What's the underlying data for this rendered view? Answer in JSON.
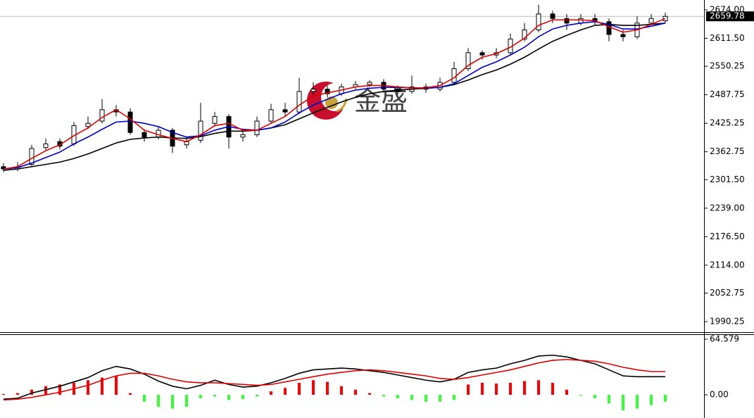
{
  "chart_data": [
    {
      "type": "candlestick",
      "watermark": "金盛",
      "ylim": [
        1967.1,
        2695.6
      ],
      "yticks": [
        {
          "value": 2674,
          "label": "2674.00"
        },
        {
          "value": 2611.5,
          "label": "2611.50"
        },
        {
          "value": 2550.25,
          "label": "2550.25"
        },
        {
          "value": 2487.75,
          "label": "2487.75"
        },
        {
          "value": 2425.25,
          "label": "2425.25"
        },
        {
          "value": 2362.75,
          "label": "2362.75"
        },
        {
          "value": 2301.5,
          "label": "2301.50"
        },
        {
          "value": 2239,
          "label": "2239.00"
        },
        {
          "value": 2176.5,
          "label": "2176.50"
        },
        {
          "value": 2114,
          "label": "2114.00"
        },
        {
          "value": 2052.75,
          "label": "2052.75"
        },
        {
          "value": 1990.25,
          "label": "1990.25"
        }
      ],
      "current_price": 2659.78,
      "up_color": "#ffffff",
      "down_color": "#000000",
      "open": [
        2330,
        2325,
        2335,
        2372,
        2385,
        2380,
        2418,
        2430,
        2455,
        2450,
        2405,
        2395,
        2410,
        2378,
        2388,
        2425,
        2440,
        2395,
        2400,
        2430,
        2455,
        2450,
        2495,
        2500,
        2490,
        2505,
        2510,
        2515,
        2500,
        2495,
        2505,
        2500,
        2515,
        2545,
        2580,
        2575,
        2580,
        2610,
        2630,
        2665,
        2655,
        2645,
        2655,
        2648,
        2620,
        2615,
        2645,
        2650
      ],
      "high": [
        2338,
        2340,
        2378,
        2392,
        2392,
        2428,
        2440,
        2478,
        2465,
        2458,
        2412,
        2418,
        2415,
        2392,
        2470,
        2450,
        2445,
        2410,
        2440,
        2468,
        2470,
        2525,
        2515,
        2508,
        2512,
        2518,
        2520,
        2522,
        2508,
        2530,
        2512,
        2525,
        2560,
        2590,
        2585,
        2590,
        2622,
        2645,
        2685,
        2672,
        2665,
        2665,
        2665,
        2655,
        2630,
        2660,
        2665,
        2668
      ],
      "low": [
        2318,
        2320,
        2330,
        2365,
        2368,
        2375,
        2412,
        2425,
        2440,
        2400,
        2385,
        2390,
        2360,
        2370,
        2382,
        2418,
        2370,
        2385,
        2395,
        2425,
        2440,
        2445,
        2488,
        2482,
        2485,
        2500,
        2505,
        2492,
        2488,
        2490,
        2492,
        2495,
        2510,
        2540,
        2565,
        2568,
        2575,
        2605,
        2625,
        2645,
        2630,
        2640,
        2640,
        2605,
        2605,
        2610,
        2640,
        2645
      ],
      "close": [
        2325,
        2330,
        2370,
        2380,
        2375,
        2420,
        2425,
        2455,
        2450,
        2405,
        2395,
        2410,
        2375,
        2385,
        2430,
        2440,
        2395,
        2400,
        2430,
        2455,
        2450,
        2495,
        2500,
        2490,
        2505,
        2510,
        2515,
        2500,
        2495,
        2505,
        2500,
        2515,
        2545,
        2580,
        2575,
        2580,
        2610,
        2630,
        2665,
        2655,
        2645,
        2655,
        2648,
        2620,
        2615,
        2645,
        2655,
        2659.78
      ],
      "series": [
        {
          "color": "#000000",
          "values": [
            2322,
            2325,
            2330,
            2335,
            2340,
            2348,
            2358,
            2370,
            2382,
            2390,
            2393,
            2395,
            2393,
            2392,
            2396,
            2403,
            2408,
            2408,
            2410,
            2415,
            2422,
            2435,
            2448,
            2460,
            2472,
            2482,
            2490,
            2495,
            2498,
            2500,
            2502,
            2504,
            2510,
            2520,
            2532,
            2542,
            2555,
            2570,
            2588,
            2605,
            2618,
            2630,
            2640,
            2642,
            2640,
            2640,
            2642,
            2645
          ]
        },
        {
          "color": "#0000cc",
          "values": [
            2325,
            2328,
            2338,
            2350,
            2362,
            2380,
            2395,
            2412,
            2428,
            2430,
            2425,
            2418,
            2405,
            2395,
            2398,
            2410,
            2418,
            2412,
            2410,
            2415,
            2428,
            2448,
            2465,
            2478,
            2490,
            2498,
            2502,
            2504,
            2504,
            2503,
            2502,
            2504,
            2512,
            2530,
            2548,
            2560,
            2575,
            2592,
            2615,
            2632,
            2640,
            2645,
            2648,
            2642,
            2632,
            2632,
            2638,
            2645
          ]
        },
        {
          "color": "#e00000",
          "values": [
            2325,
            2330,
            2348,
            2365,
            2378,
            2398,
            2415,
            2438,
            2455,
            2435,
            2410,
            2400,
            2392,
            2385,
            2400,
            2420,
            2425,
            2410,
            2410,
            2425,
            2440,
            2465,
            2485,
            2492,
            2498,
            2505,
            2508,
            2508,
            2505,
            2503,
            2503,
            2508,
            2525,
            2552,
            2570,
            2578,
            2592,
            2612,
            2640,
            2652,
            2652,
            2652,
            2650,
            2637,
            2625,
            2630,
            2642,
            2655
          ]
        }
      ]
    },
    {
      "type": "macd",
      "ylim": [
        -25.3,
        69.5
      ],
      "yticks": [
        64.579,
        {
          "value": 0,
          "label": "0.00"
        }
      ],
      "up_color": "#ff0000",
      "down_color": "#33ff33",
      "histogram": [
        1,
        2,
        6,
        10,
        12,
        14,
        17,
        20,
        22,
        2,
        -8,
        -14,
        -16,
        -14,
        -4,
        -2,
        -6,
        -5,
        -2,
        4,
        8,
        14,
        17,
        15,
        10,
        6,
        2,
        -2,
        -4,
        -6,
        -8,
        -8,
        -6,
        12,
        14,
        13,
        14,
        16,
        17,
        14,
        6,
        -1,
        -4,
        -10,
        -18,
        -16,
        -12,
        -8
      ],
      "series": [
        {
          "color": "#000000",
          "values": [
            -5,
            -4,
            2,
            6,
            10,
            15,
            20,
            28,
            33,
            30,
            24,
            16,
            10,
            7,
            11,
            17,
            12,
            9,
            10,
            14,
            19,
            25,
            29,
            30,
            31,
            30,
            28,
            26,
            23,
            20,
            17,
            15,
            18,
            26,
            29,
            31,
            36,
            40,
            45,
            46,
            44,
            40,
            36,
            29,
            22,
            21,
            21,
            21
          ]
        },
        {
          "color": "#e00000",
          "values": [
            -6,
            -5,
            -3,
            0,
            3,
            7,
            11,
            17,
            22,
            25,
            25,
            22,
            18,
            15,
            14,
            14,
            13,
            12,
            11,
            12,
            15,
            18,
            21,
            24,
            26,
            28,
            29,
            28,
            26,
            24,
            22,
            19,
            18,
            20,
            23,
            26,
            29,
            33,
            37,
            40,
            41,
            40,
            39,
            36,
            32,
            29,
            27,
            27
          ]
        }
      ]
    }
  ]
}
